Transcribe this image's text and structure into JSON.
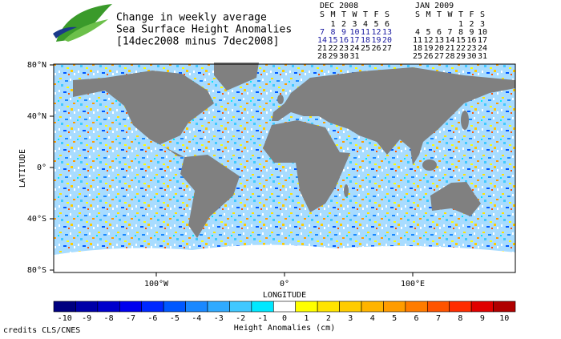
{
  "header": {
    "title_lines": [
      "Change in weekly average",
      "Sea Surface Height Anomalies",
      "[14dec2008 minus 7dec2008]"
    ]
  },
  "calendars": [
    {
      "month": "DEC 2008",
      "weekdays": [
        "S",
        "M",
        "T",
        "W",
        "T",
        "F",
        "S"
      ],
      "weeks": [
        [
          null,
          1,
          2,
          3,
          4,
          5,
          6
        ],
        [
          7,
          8,
          9,
          10,
          11,
          12,
          13
        ],
        [
          14,
          15,
          16,
          17,
          18,
          19,
          20
        ],
        [
          21,
          22,
          23,
          24,
          25,
          26,
          27
        ],
        [
          28,
          29,
          30,
          31,
          null,
          null,
          null
        ]
      ],
      "highlighted_weeks": [
        1,
        2
      ]
    },
    {
      "month": "JAN 2009",
      "weekdays": [
        "S",
        "M",
        "T",
        "W",
        "T",
        "F",
        "S"
      ],
      "weeks": [
        [
          null,
          null,
          null,
          null,
          1,
          2,
          3
        ],
        [
          4,
          5,
          6,
          7,
          8,
          9,
          10
        ],
        [
          11,
          12,
          13,
          14,
          15,
          16,
          17
        ],
        [
          18,
          19,
          20,
          21,
          22,
          23,
          24
        ],
        [
          25,
          26,
          27,
          28,
          29,
          30,
          31
        ]
      ],
      "highlighted_weeks": []
    }
  ],
  "map": {
    "lat_ticks": [
      {
        "value": 80,
        "label": "80°N"
      },
      {
        "value": 40,
        "label": "40°N"
      },
      {
        "value": 0,
        "label": "0°"
      },
      {
        "value": -40,
        "label": "40°S"
      },
      {
        "value": -80,
        "label": "80°S"
      }
    ],
    "lon_ticks": [
      {
        "value": -100,
        "label": "100°W"
      },
      {
        "value": 0,
        "label": "0°"
      },
      {
        "value": 100,
        "label": "100°E"
      }
    ],
    "ylabel": "LATITUDE",
    "xlabel": "LONGITUDE"
  },
  "colorbar": {
    "ticks": [
      -10,
      -9,
      -8,
      -7,
      -6,
      -5,
      -4,
      -3,
      -2,
      -1,
      0,
      1,
      2,
      3,
      4,
      5,
      6,
      7,
      8,
      9,
      10
    ],
    "colors": [
      "#000080",
      "#0000a8",
      "#0000cc",
      "#0000ee",
      "#0028ff",
      "#0058ff",
      "#1a88ff",
      "#30aaff",
      "#40c8ff",
      "#00e8ff",
      "#ffffff",
      "#ffff00",
      "#ffe400",
      "#ffcc00",
      "#ffb400",
      "#ff9c00",
      "#ff7c00",
      "#ff5400",
      "#ff2c00",
      "#e00000",
      "#b00000"
    ],
    "label": "Height Anomalies (cm)"
  },
  "credits": "credits CLS/CNES"
}
